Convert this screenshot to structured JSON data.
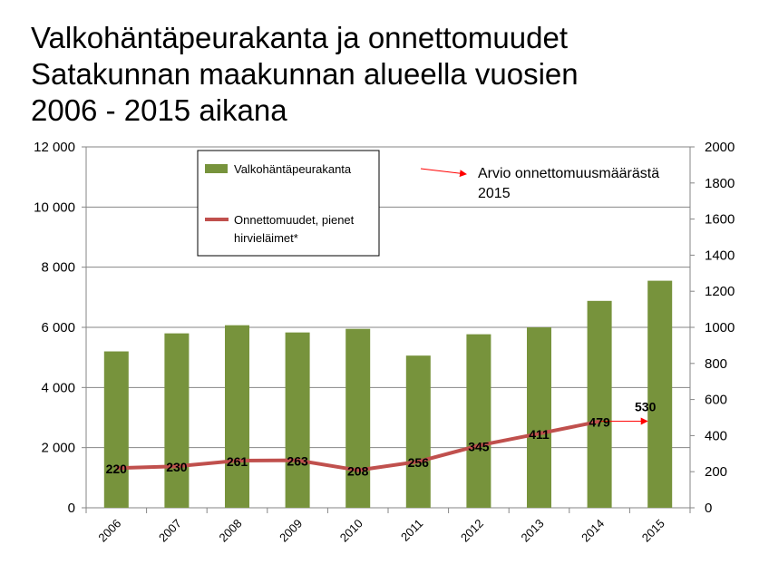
{
  "chart_data": {
    "type": "bar+line",
    "title_lines": [
      "Valkohäntäpeurakanta ja onnettomuudet",
      "Satakunnan maakunnan alueella vuosien",
      "2006 - 2015 aikana"
    ],
    "categories": [
      "2006",
      "2007",
      "2008",
      "2009",
      "2010",
      "2011",
      "2012",
      "2013",
      "2014",
      "2015"
    ],
    "series": [
      {
        "name": "Valkohäntäpeurakanta",
        "type": "bar",
        "axis": "left",
        "color": "#77933c",
        "values": [
          5200,
          5800,
          6070,
          5830,
          5950,
          5060,
          5770,
          6000,
          6880,
          7550
        ]
      },
      {
        "name_lines": [
          "Onnettomuudet, pienet",
          "hirvieläimet*"
        ],
        "type": "line",
        "axis": "right",
        "color": "#c0504d",
        "values": [
          220,
          230,
          261,
          263,
          208,
          256,
          345,
          411,
          479,
          null
        ],
        "data_labels": [
          "220",
          "230",
          "261",
          "263",
          "208",
          "256",
          "345",
          "411",
          "479",
          ""
        ]
      }
    ],
    "estimate": {
      "category": "2015",
      "value": 530,
      "label": "530",
      "color": "#ff0000",
      "legend_lines": [
        "Arvio onnettomuusmäärästä",
        "2015"
      ]
    },
    "left_axis": {
      "min": 0,
      "max": 12000,
      "step": 2000,
      "tick_labels": [
        "0",
        "2 000",
        "4 000",
        "6 000",
        "8 000",
        "10 000",
        "12 000"
      ]
    },
    "right_axis": {
      "min": 0,
      "max": 2000,
      "step": 200,
      "tick_labels": [
        "0",
        "200",
        "400",
        "600",
        "800",
        "1000",
        "1200",
        "1400",
        "1600",
        "1800",
        "2000"
      ]
    },
    "grid": "horizontal",
    "legend_placement": "top-left"
  }
}
